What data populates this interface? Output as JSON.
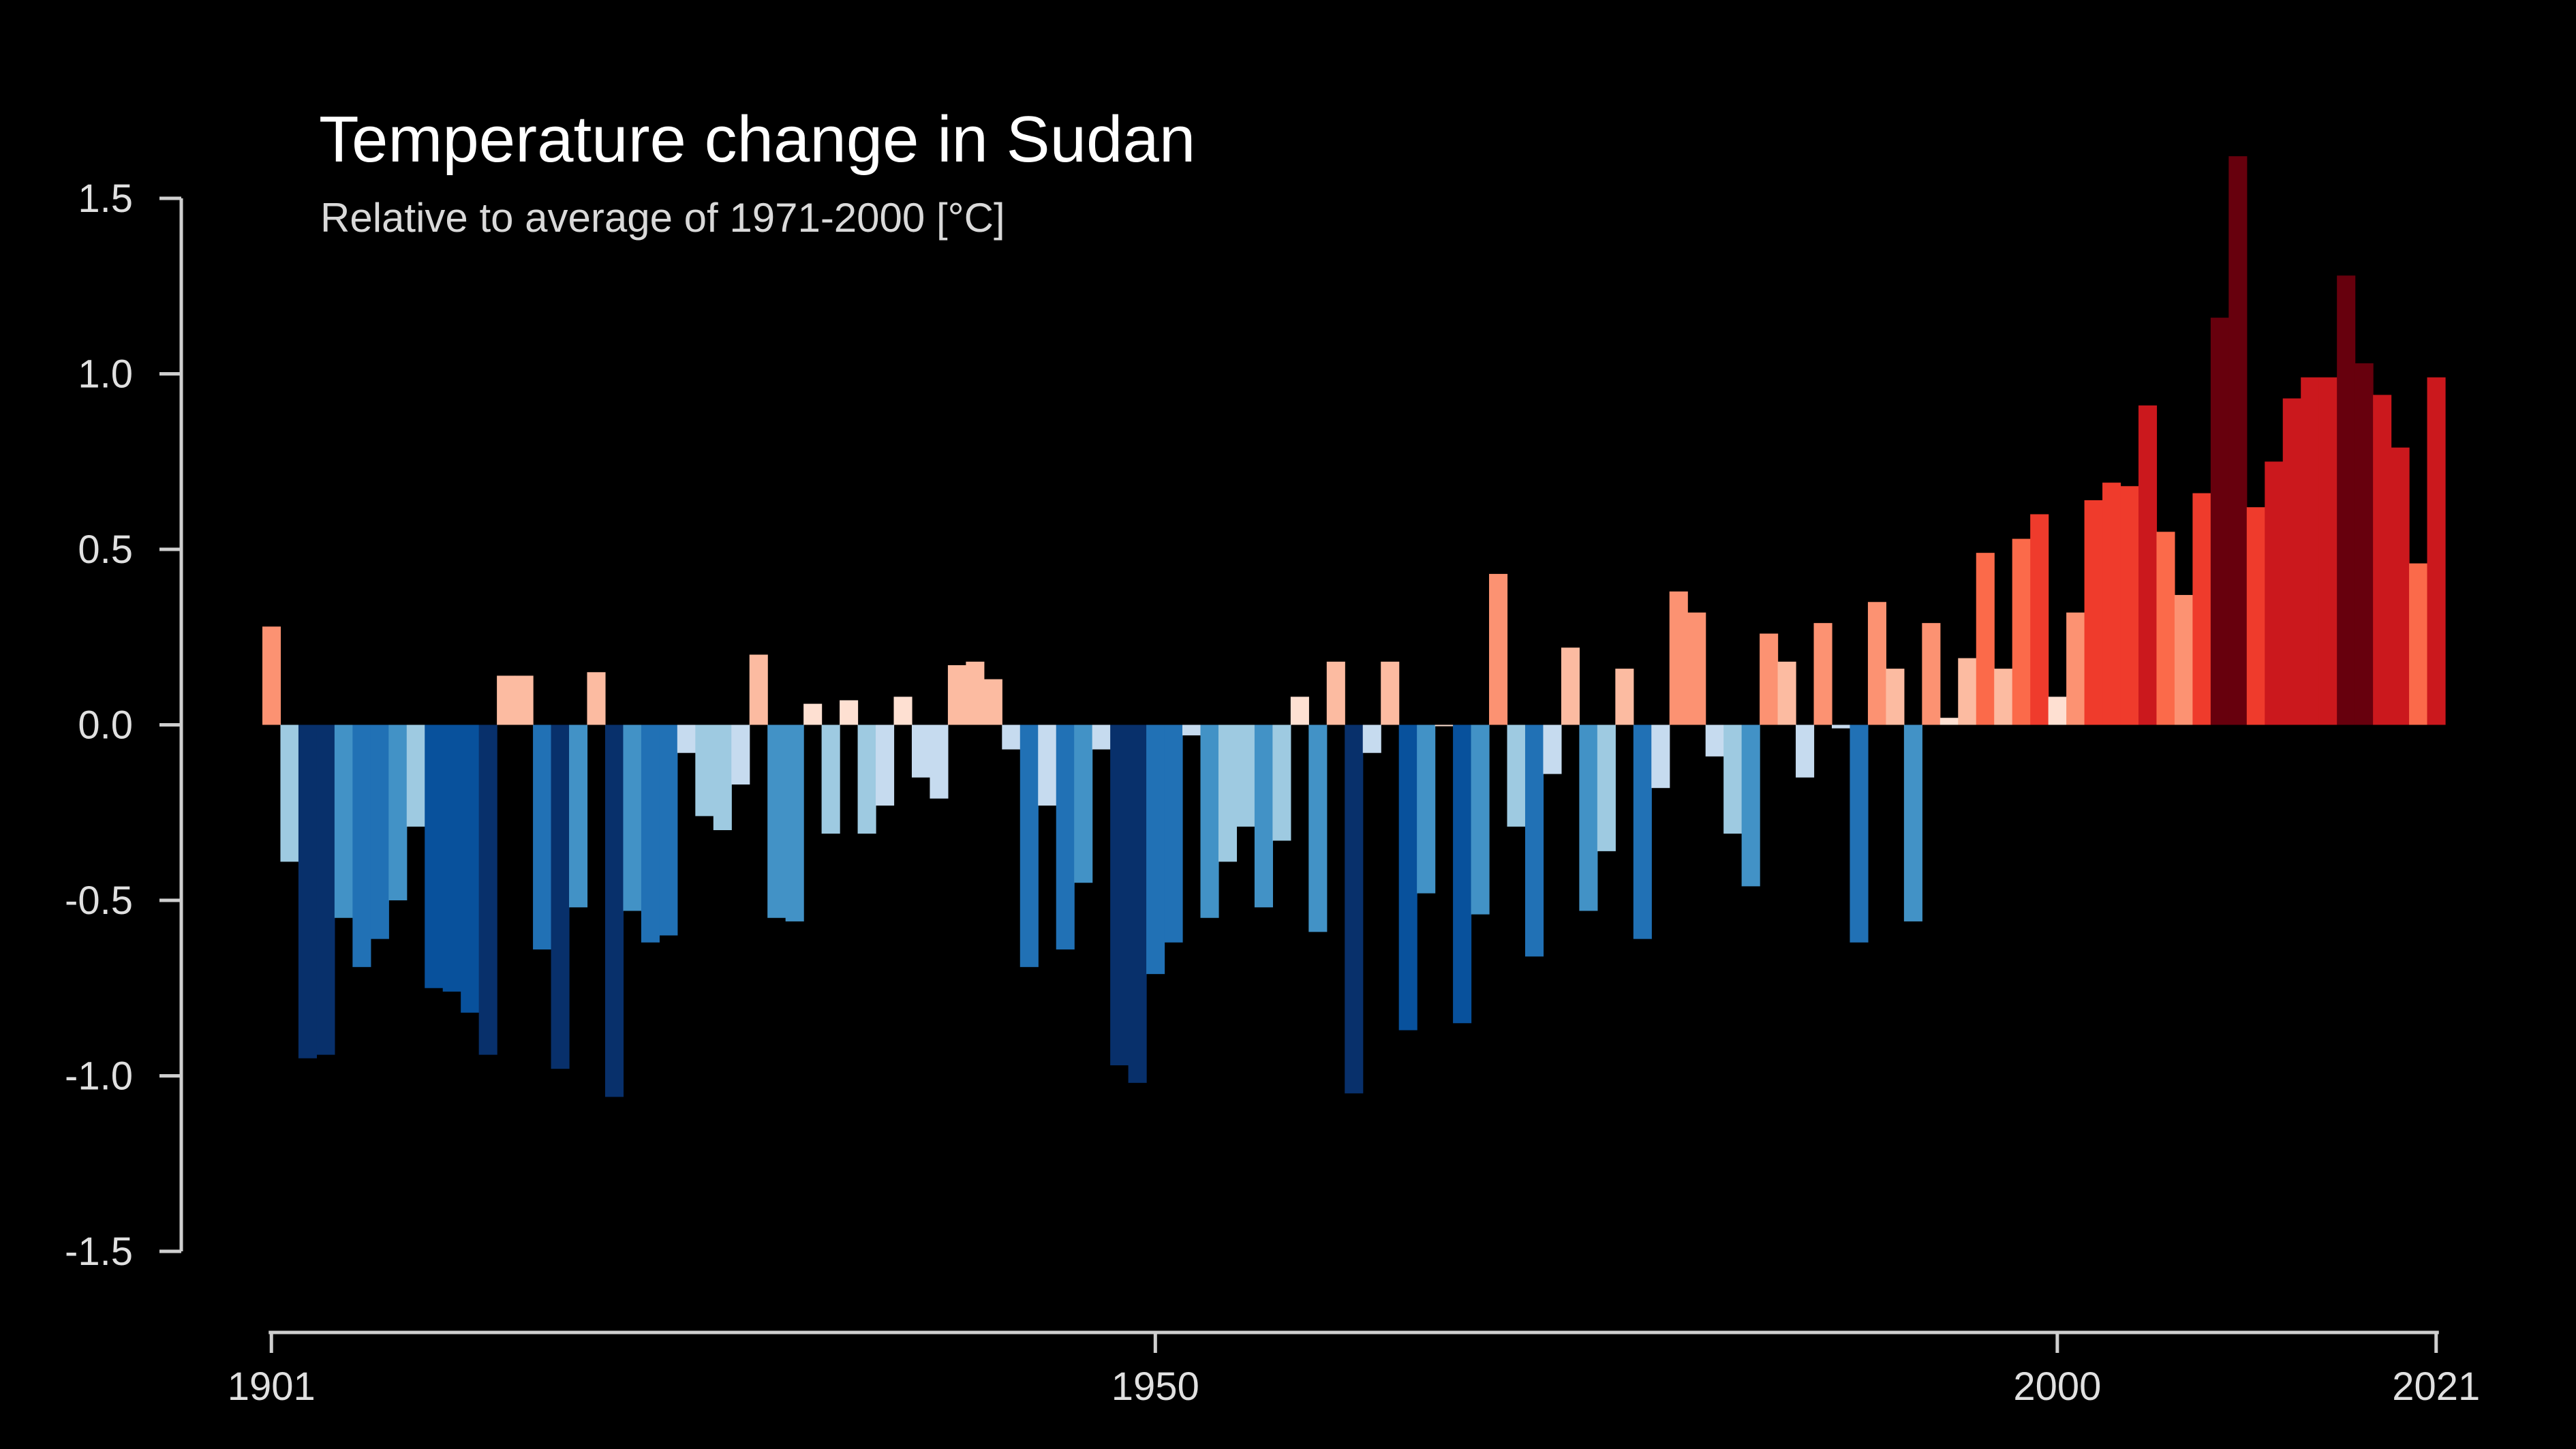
{
  "chart_data": {
    "type": "bar",
    "title": "Temperature change in Sudan",
    "subtitle": "Relative to average of 1971-2000  [°C]",
    "xlabel": "",
    "ylabel": "",
    "ylim": [
      -1.5,
      1.5
    ],
    "xlim": [
      1901,
      2021
    ],
    "yticks": [
      "1.5",
      "1.0",
      "0.5",
      "0.0",
      "-0.5",
      "-1.0",
      "-1.5"
    ],
    "xticks": [
      "1901",
      "1950",
      "2000",
      "2021"
    ],
    "grid": false,
    "legend": "none",
    "color_scale": {
      "negative": [
        "#c6dbef",
        "#9ecae1",
        "#4292c6",
        "#2171b5",
        "#08519c",
        "#08306b"
      ],
      "positive": [
        "#fee0d2",
        "#fcbba1",
        "#fc9272",
        "#fb6a4a",
        "#ef3b2c",
        "#cb181d",
        "#67000d"
      ]
    },
    "categories": [
      1901,
      1902,
      1903,
      1904,
      1905,
      1906,
      1907,
      1908,
      1909,
      1910,
      1911,
      1912,
      1913,
      1914,
      1915,
      1916,
      1917,
      1918,
      1919,
      1920,
      1921,
      1922,
      1923,
      1924,
      1925,
      1926,
      1927,
      1928,
      1929,
      1930,
      1931,
      1932,
      1933,
      1934,
      1935,
      1936,
      1937,
      1938,
      1939,
      1940,
      1941,
      1942,
      1943,
      1944,
      1945,
      1946,
      1947,
      1948,
      1949,
      1950,
      1951,
      1952,
      1953,
      1954,
      1955,
      1956,
      1957,
      1958,
      1959,
      1960,
      1961,
      1962,
      1963,
      1964,
      1965,
      1966,
      1967,
      1968,
      1969,
      1970,
      1971,
      1972,
      1973,
      1974,
      1975,
      1976,
      1977,
      1978,
      1979,
      1980,
      1981,
      1982,
      1983,
      1984,
      1985,
      1986,
      1987,
      1988,
      1989,
      1990,
      1991,
      1992,
      1993,
      1994,
      1995,
      1996,
      1997,
      1998,
      1999,
      2000,
      2001,
      2002,
      2003,
      2004,
      2005,
      2006,
      2007,
      2008,
      2009,
      2010,
      2011,
      2012,
      2013,
      2014,
      2015,
      2016,
      2017,
      2018,
      2019,
      2020,
      2021
    ],
    "values": [
      0.28,
      -0.39,
      -0.95,
      -0.94,
      -0.55,
      -0.69,
      -0.61,
      -0.5,
      -0.29,
      -0.75,
      -0.76,
      -0.82,
      -0.94,
      0.14,
      0.14,
      -0.64,
      -0.98,
      -0.52,
      0.15,
      -1.06,
      -0.53,
      -0.62,
      -0.6,
      -0.08,
      -0.26,
      -0.3,
      -0.17,
      0.2,
      -0.55,
      -0.56,
      0.06,
      -0.31,
      0.07,
      -0.31,
      -0.23,
      0.08,
      -0.15,
      -0.21,
      0.17,
      0.18,
      0.13,
      -0.07,
      -0.69,
      -0.23,
      -0.64,
      -0.45,
      -0.07,
      -0.97,
      -1.02,
      -0.71,
      -0.62,
      -0.03,
      -0.55,
      -0.39,
      -0.29,
      -0.52,
      -0.33,
      0.08,
      -0.59,
      0.18,
      -1.05,
      -0.08,
      0.18,
      -0.87,
      -0.48,
      0.0,
      -0.85,
      -0.54,
      0.43,
      -0.29,
      -0.66,
      -0.14,
      0.22,
      -0.53,
      -0.36,
      0.16,
      -0.61,
      -0.18,
      0.38,
      0.32,
      -0.09,
      -0.31,
      -0.46,
      0.26,
      0.18,
      -0.15,
      0.29,
      -0.01,
      -0.62,
      0.35,
      0.16,
      -0.56,
      0.29,
      0.02,
      0.19,
      0.49,
      0.16,
      0.53,
      0.6,
      0.08,
      0.32,
      0.64,
      0.69,
      0.68,
      0.91,
      0.55,
      0.37,
      0.66,
      1.16,
      1.62,
      0.62,
      0.75,
      0.93,
      0.99,
      0.99,
      1.28,
      1.03,
      0.94,
      0.79,
      0.46,
      0.99
    ]
  }
}
